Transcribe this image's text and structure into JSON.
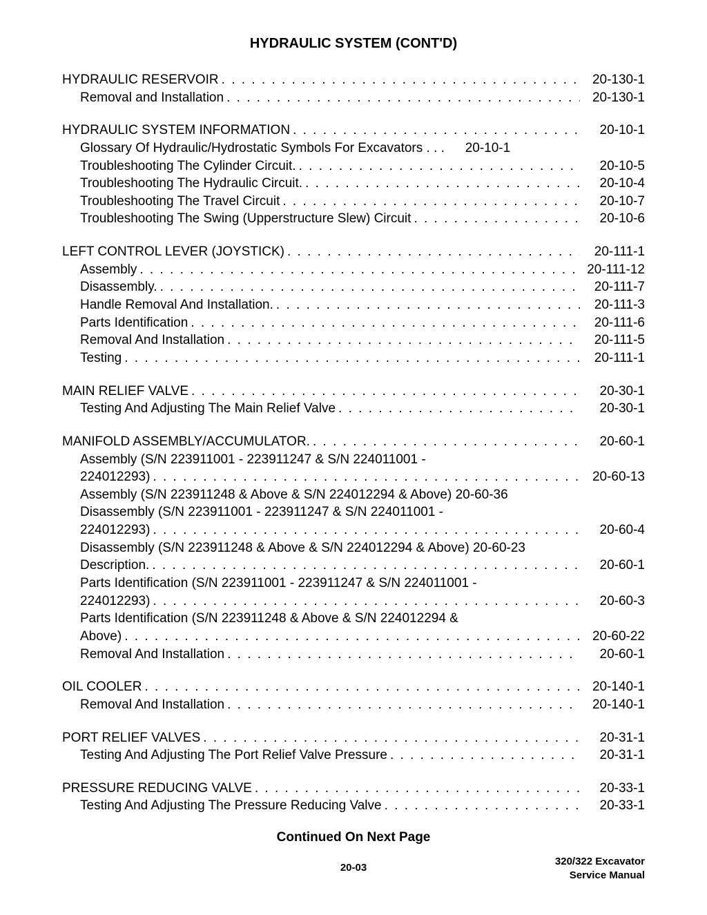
{
  "title": "HYDRAULIC SYSTEM (CONT'D)",
  "continued": "Continued On Next Page",
  "footer_page": "20-03",
  "footer_right_1": "320/322 Excavator",
  "footer_right_2": "Service Manual",
  "groups": [
    {
      "head": {
        "label": "HYDRAULIC RESERVOIR",
        "page": "20-130-1"
      },
      "subs": [
        {
          "label": "Removal and Installation",
          "page": "20-130-1"
        }
      ]
    },
    {
      "head": {
        "label": "HYDRAULIC SYSTEM INFORMATION",
        "page": "20-10-1"
      },
      "subs": [
        {
          "label": "Glossary Of Hydraulic/Hydrostatic Symbols For Excavators",
          "page": "20-10-1",
          "nodots": true
        },
        {
          "label": "Troubleshooting The Cylinder Circuit.",
          "page": "20-10-5"
        },
        {
          "label": "Troubleshooting The Hydraulic Circuit.",
          "page": "20-10-4"
        },
        {
          "label": "Troubleshooting The Travel Circuit",
          "page": "20-10-7"
        },
        {
          "label": "Troubleshooting The Swing (Upperstructure Slew) Circuit",
          "page": "20-10-6"
        }
      ]
    },
    {
      "head": {
        "label": "LEFT CONTROL LEVER (JOYSTICK)",
        "page": "20-111-1"
      },
      "subs": [
        {
          "label": "Assembly",
          "page": "20-111-12"
        },
        {
          "label": "Disassembly.",
          "page": "20-111-7"
        },
        {
          "label": "Handle Removal And Installation.",
          "page": "20-111-3"
        },
        {
          "label": "Parts Identification",
          "page": "20-111-6"
        },
        {
          "label": "Removal And Installation",
          "page": "20-111-5"
        },
        {
          "label": "Testing",
          "page": "20-111-1"
        }
      ]
    },
    {
      "head": {
        "label": "MAIN RELIEF VALVE",
        "page": "20-30-1"
      },
      "subs": [
        {
          "label": "Testing And Adjusting The Main Relief Valve",
          "page": "20-30-1"
        }
      ]
    },
    {
      "head": {
        "label": "MANIFOLD ASSEMBLY/ACCUMULATOR.",
        "page": "20-60-1"
      },
      "subs": [
        {
          "wrap_line": "Assembly (S/N 223911001 - 223911247 & S/N 224011001 -"
        },
        {
          "label": "224012293)",
          "page": "20-60-13"
        },
        {
          "wrap_line": "Assembly (S/N 223911248 & Above & S/N 224012294 & Above) 20-60-36",
          "nospan": true
        },
        {
          "wrap_line": "Disassembly (S/N 223911001 - 223911247 & S/N 224011001 -"
        },
        {
          "label": "224012293)",
          "page": "20-60-4"
        },
        {
          "wrap_line": "Disassembly (S/N 223911248 & Above & S/N 224012294 & Above) 20-60-23",
          "nospan": true
        },
        {
          "label": "Description.",
          "page": "20-60-1"
        },
        {
          "wrap_line": "Parts Identification (S/N 223911001 - 223911247 & S/N 224011001 -"
        },
        {
          "label": "224012293)",
          "page": "20-60-3"
        },
        {
          "wrap_line": "Parts Identification (S/N 223911248 & Above & S/N 224012294 &"
        },
        {
          "label": "Above)",
          "page": "20-60-22"
        },
        {
          "label": "Removal And Installation",
          "page": "20-60-1"
        }
      ]
    },
    {
      "head": {
        "label": "OIL COOLER",
        "page": "20-140-1"
      },
      "subs": [
        {
          "label": "Removal And Installation",
          "page": "20-140-1"
        }
      ]
    },
    {
      "head": {
        "label": "PORT RELIEF VALVES",
        "page": "20-31-1"
      },
      "subs": [
        {
          "label": "Testing And Adjusting The Port Relief Valve Pressure",
          "page": "20-31-1"
        }
      ]
    },
    {
      "head": {
        "label": "PRESSURE REDUCING VALVE",
        "page": "20-33-1"
      },
      "subs": [
        {
          "label": "Testing And Adjusting The Pressure Reducing Valve",
          "page": "20-33-1"
        }
      ]
    }
  ]
}
